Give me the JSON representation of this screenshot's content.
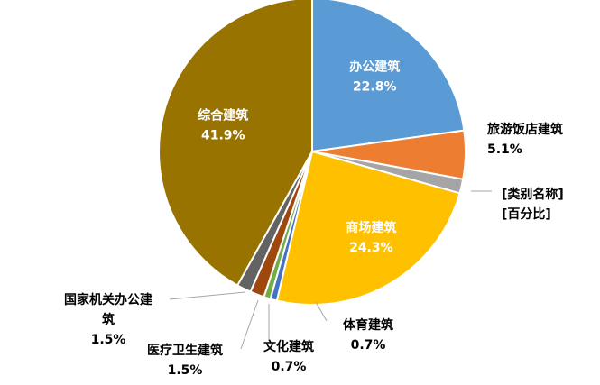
{
  "chart_data": {
    "type": "pie",
    "title": "",
    "slices": [
      {
        "name": "办公建筑",
        "value": 22.8,
        "percent": "22.8%",
        "color": "#5b9bd5"
      },
      {
        "name": "旅游饭店建筑",
        "value": 5.1,
        "percent": "5.1%",
        "color": "#ed7d31"
      },
      {
        "name": "[类别名称]",
        "value": 1.5,
        "percent": "[百分比]",
        "color": "#a5a5a5"
      },
      {
        "name": "商场建筑",
        "value": 24.3,
        "percent": "24.3%",
        "color": "#ffc000"
      },
      {
        "name": "体育建筑",
        "value": 0.7,
        "percent": "0.7%",
        "color": "#4472c4"
      },
      {
        "name": "文化建筑",
        "value": 0.7,
        "percent": "0.7%",
        "color": "#70ad47"
      },
      {
        "name": "医疗卫生建筑",
        "value": 1.5,
        "percent": "1.5%",
        "color": "#9e480e"
      },
      {
        "name": "国家机关办公建筑",
        "value": 1.5,
        "percent": "1.5%",
        "color": "#636363"
      },
      {
        "name": "综合建筑",
        "value": 41.9,
        "percent": "41.9%",
        "color": "#997300"
      }
    ]
  }
}
